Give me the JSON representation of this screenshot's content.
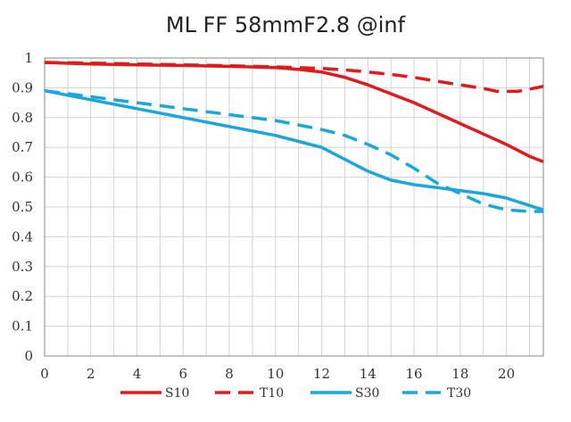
{
  "chart_data": {
    "type": "line",
    "title": "ML FF 58mmF2.8 @inf",
    "xlabel": "",
    "ylabel": "",
    "xlim": [
      0,
      21.6
    ],
    "ylim": [
      0,
      1
    ],
    "x_ticks": [
      0,
      2,
      4,
      6,
      8,
      10,
      12,
      14,
      16,
      18,
      20
    ],
    "y_ticks": [
      0,
      0.1,
      0.2,
      0.3,
      0.4,
      0.5,
      0.6,
      0.7,
      0.8,
      0.9,
      1
    ],
    "y_tick_labels": [
      "0",
      "0.1",
      "0.2",
      "0.3",
      "0.4",
      "0.5",
      "0.6",
      "0.7",
      "0.8",
      "0.9",
      "1"
    ],
    "grid": true,
    "legend_position": "bottom",
    "series": [
      {
        "name": "S10",
        "color": "#e31a1c",
        "style": "solid",
        "x": [
          0,
          2,
          4,
          6,
          8,
          10,
          11,
          12,
          13,
          14,
          15,
          16,
          17,
          18,
          19,
          20,
          21,
          21.6
        ],
        "y": [
          0.985,
          0.98,
          0.977,
          0.975,
          0.972,
          0.968,
          0.962,
          0.953,
          0.935,
          0.91,
          0.88,
          0.85,
          0.815,
          0.78,
          0.745,
          0.71,
          0.67,
          0.652
        ]
      },
      {
        "name": "T10",
        "color": "#e31a1c",
        "style": "dashed",
        "x": [
          0,
          2,
          4,
          6,
          8,
          10,
          12,
          13,
          14,
          15,
          16,
          17,
          18,
          19,
          19.6,
          20.5,
          21.3,
          21.6
        ],
        "y": [
          0.985,
          0.983,
          0.98,
          0.977,
          0.974,
          0.97,
          0.965,
          0.96,
          0.953,
          0.945,
          0.935,
          0.922,
          0.91,
          0.898,
          0.888,
          0.888,
          0.9,
          0.905
        ]
      },
      {
        "name": "S30",
        "color": "#1aa7e0",
        "style": "solid",
        "x": [
          0,
          2,
          4,
          6,
          8,
          10,
          11,
          12,
          13,
          14,
          15,
          16,
          17,
          18,
          19,
          20,
          21,
          21.6
        ],
        "y": [
          0.89,
          0.86,
          0.83,
          0.8,
          0.77,
          0.74,
          0.72,
          0.7,
          0.66,
          0.62,
          0.59,
          0.575,
          0.565,
          0.555,
          0.545,
          0.53,
          0.505,
          0.49
        ]
      },
      {
        "name": "T30",
        "color": "#1aa7e0",
        "style": "dashed",
        "x": [
          0,
          2,
          4,
          6,
          8,
          10,
          11,
          12,
          13,
          14,
          15,
          16,
          17,
          18,
          19,
          20,
          21,
          21.6
        ],
        "y": [
          0.89,
          0.87,
          0.85,
          0.83,
          0.81,
          0.79,
          0.775,
          0.76,
          0.74,
          0.71,
          0.675,
          0.63,
          0.58,
          0.545,
          0.51,
          0.49,
          0.485,
          0.485
        ]
      }
    ]
  }
}
